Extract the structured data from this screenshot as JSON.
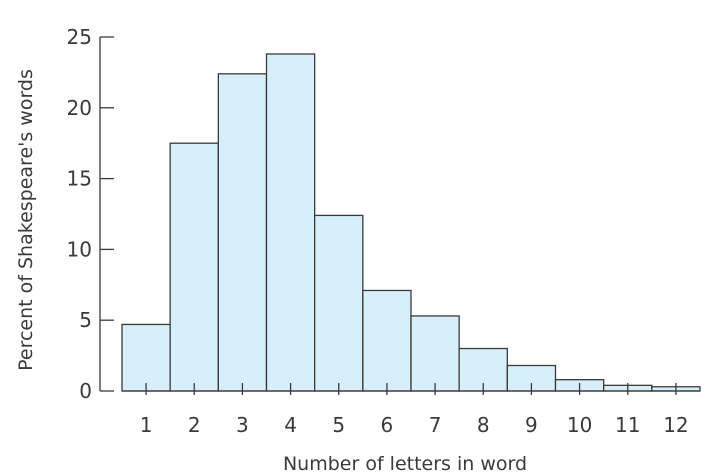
{
  "chart_data": {
    "type": "bar",
    "xlabel": "Number of letters in word",
    "ylabel": "Percent of Shakespeare's words",
    "categories": [
      "1",
      "2",
      "3",
      "4",
      "5",
      "6",
      "7",
      "8",
      "9",
      "10",
      "11",
      "12"
    ],
    "values": [
      4.7,
      17.5,
      22.4,
      23.8,
      12.4,
      7.1,
      5.3,
      3.0,
      1.8,
      0.8,
      0.4,
      0.3
    ],
    "ylim": [
      0,
      25
    ],
    "yticks": [
      "0",
      "5",
      "10",
      "15",
      "20",
      "25"
    ],
    "grid": false,
    "colors": {
      "bar_fill": "#d6effa",
      "stroke": "#3a3a3a"
    }
  }
}
